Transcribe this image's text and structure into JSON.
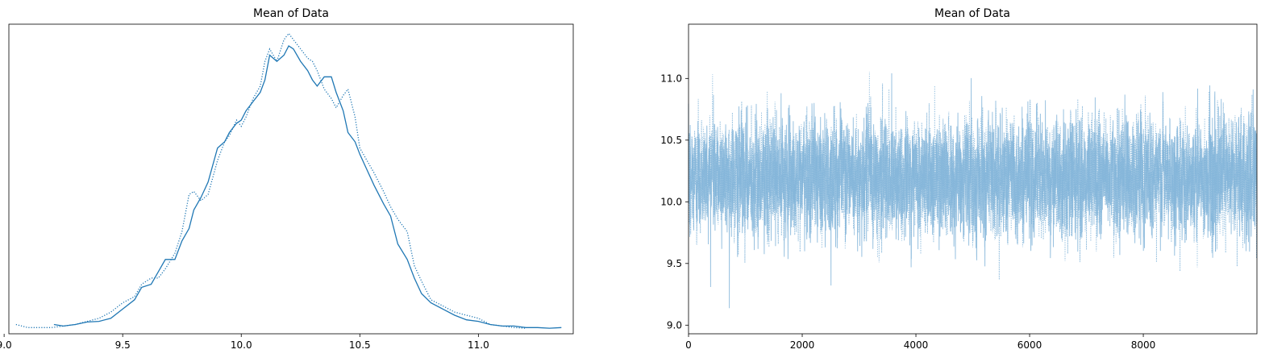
{
  "chart_data": [
    {
      "type": "line",
      "title": "Mean of Data",
      "xlabel": "",
      "ylabel": "",
      "xlim": [
        9.02,
        11.4
      ],
      "ylim": [
        0.0,
        1.0
      ],
      "x_ticks": [
        "9.0",
        "9.5",
        "10.0",
        "10.5",
        "11.0"
      ],
      "x_tick_values": [
        9.0,
        9.5,
        10.0,
        10.5,
        11.0
      ],
      "show_y_ticks": false,
      "grid": false,
      "color": "#1f77b4",
      "series": [
        {
          "style": "solid",
          "x": [
            9.21,
            9.25,
            9.3,
            9.35,
            9.4,
            9.45,
            9.5,
            9.55,
            9.58,
            9.62,
            9.65,
            9.68,
            9.72,
            9.75,
            9.78,
            9.8,
            9.83,
            9.86,
            9.9,
            9.93,
            9.95,
            9.98,
            10.0,
            10.02,
            10.05,
            10.08,
            10.1,
            10.12,
            10.15,
            10.18,
            10.2,
            10.22,
            10.25,
            10.28,
            10.3,
            10.32,
            10.35,
            10.38,
            10.4,
            10.43,
            10.45,
            10.48,
            10.5,
            10.53,
            10.56,
            10.6,
            10.63,
            10.66,
            10.7,
            10.73,
            10.76,
            10.8,
            10.85,
            10.9,
            10.95,
            11.0,
            11.05,
            11.1,
            11.15,
            11.2,
            11.25,
            11.3,
            11.35
          ],
          "y": [
            0.03,
            0.025,
            0.03,
            0.038,
            0.04,
            0.05,
            0.08,
            0.11,
            0.15,
            0.16,
            0.2,
            0.24,
            0.24,
            0.3,
            0.34,
            0.4,
            0.44,
            0.49,
            0.6,
            0.62,
            0.65,
            0.68,
            0.69,
            0.72,
            0.75,
            0.78,
            0.82,
            0.9,
            0.88,
            0.9,
            0.93,
            0.92,
            0.88,
            0.85,
            0.82,
            0.8,
            0.83,
            0.83,
            0.78,
            0.72,
            0.65,
            0.62,
            0.58,
            0.53,
            0.48,
            0.42,
            0.38,
            0.29,
            0.24,
            0.18,
            0.13,
            0.1,
            0.08,
            0.06,
            0.045,
            0.04,
            0.03,
            0.025,
            0.025,
            0.02,
            0.02,
            0.018,
            0.02
          ]
        },
        {
          "style": "dotted",
          "x": [
            9.05,
            9.1,
            9.15,
            9.2,
            9.25,
            9.3,
            9.35,
            9.4,
            9.45,
            9.5,
            9.55,
            9.58,
            9.62,
            9.65,
            9.68,
            9.72,
            9.75,
            9.78,
            9.8,
            9.83,
            9.86,
            9.9,
            9.93,
            9.95,
            9.98,
            10.0,
            10.02,
            10.05,
            10.08,
            10.1,
            10.12,
            10.15,
            10.18,
            10.2,
            10.22,
            10.25,
            10.28,
            10.3,
            10.32,
            10.35,
            10.38,
            10.4,
            10.43,
            10.45,
            10.48,
            10.5,
            10.53,
            10.56,
            10.6,
            10.63,
            10.66,
            10.7,
            10.73,
            10.76,
            10.8,
            10.85,
            10.9,
            10.95,
            11.0,
            11.05,
            11.1,
            11.15,
            11.2
          ],
          "y": [
            0.03,
            0.02,
            0.02,
            0.02,
            0.025,
            0.03,
            0.04,
            0.05,
            0.07,
            0.1,
            0.12,
            0.16,
            0.18,
            0.18,
            0.21,
            0.26,
            0.33,
            0.45,
            0.46,
            0.43,
            0.45,
            0.56,
            0.62,
            0.64,
            0.69,
            0.67,
            0.7,
            0.76,
            0.8,
            0.88,
            0.92,
            0.88,
            0.95,
            0.97,
            0.95,
            0.92,
            0.89,
            0.88,
            0.85,
            0.79,
            0.76,
            0.73,
            0.77,
            0.79,
            0.7,
            0.6,
            0.56,
            0.52,
            0.46,
            0.41,
            0.37,
            0.33,
            0.22,
            0.17,
            0.11,
            0.09,
            0.07,
            0.06,
            0.05,
            0.03,
            0.025,
            0.02,
            0.018
          ]
        }
      ]
    },
    {
      "type": "line",
      "title": "Mean of Data",
      "xlabel": "",
      "ylabel": "",
      "xlim": [
        0,
        9999
      ],
      "ylim": [
        8.93,
        11.44
      ],
      "x_ticks": [
        "0",
        "2000",
        "4000",
        "6000",
        "8000"
      ],
      "x_tick_values": [
        0,
        2000,
        4000,
        6000,
        8000
      ],
      "y_ticks": [
        "9.0",
        "9.5",
        "10.0",
        "10.5",
        "11.0"
      ],
      "y_tick_values": [
        9.0,
        9.5,
        10.0,
        10.5,
        11.0
      ],
      "grid": false,
      "color": "#7fb3d8",
      "n_samples": 10000,
      "center": 10.2,
      "spread": 0.33,
      "series": [
        {
          "style": "solid"
        },
        {
          "style": "dotted"
        }
      ]
    }
  ]
}
